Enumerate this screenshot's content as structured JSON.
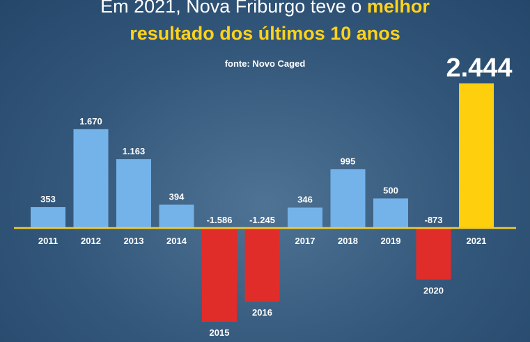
{
  "header": {
    "title_line1_prefix": "Em 2021, Nova Friburgo teve o ",
    "title_line1_highlight": "melhor",
    "title_line2": "resultado dos últimos 10 anos",
    "source": "fonte: Novo Caged"
  },
  "colors": {
    "positive": "#74b2ea",
    "negative": "#e02d2a",
    "highlight": "#fdcf0c",
    "baseline": "#f2cc2a"
  },
  "chart_data": {
    "type": "bar",
    "categories": [
      "2011",
      "2012",
      "2013",
      "2014",
      "2015",
      "2016",
      "2017",
      "2018",
      "2019",
      "2020",
      "2021"
    ],
    "values": [
      353,
      1670,
      1163,
      394,
      -1586,
      -1245,
      346,
      995,
      500,
      -873,
      2444
    ],
    "value_labels": [
      "353",
      "1.670",
      "1.163",
      "394",
      "-1.586",
      "-1.245",
      "346",
      "995",
      "500",
      "-873",
      "2.444"
    ],
    "highlight_category": "2021",
    "title": "Em 2021, Nova Friburgo teve o melhor resultado dos últimos 10 anos",
    "grid": false
  }
}
